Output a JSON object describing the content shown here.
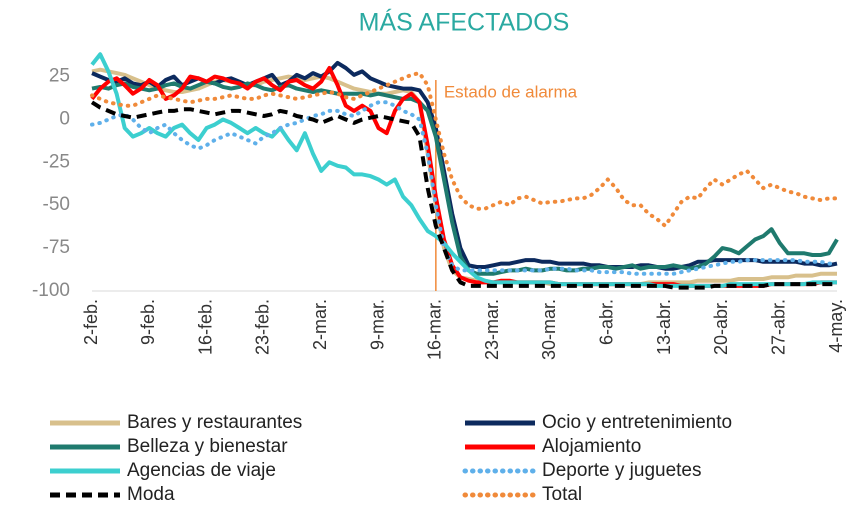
{
  "chart_data": {
    "type": "line",
    "title": "MÁS AFECTADOS",
    "title_color": "#2aa9a1",
    "categories": [
      "2-feb.",
      null,
      null,
      null,
      null,
      null,
      null,
      "9-feb.",
      null,
      null,
      null,
      null,
      null,
      null,
      "16-feb.",
      null,
      null,
      null,
      null,
      null,
      null,
      "23-feb.",
      null,
      null,
      null,
      null,
      null,
      null,
      "2-mar.",
      null,
      null,
      null,
      null,
      null,
      null,
      "9-mar.",
      null,
      null,
      null,
      null,
      null,
      null,
      "16-mar.",
      null,
      null,
      null,
      null,
      null,
      null,
      "23-mar.",
      null,
      null,
      null,
      null,
      null,
      null,
      "30-mar.",
      null,
      null,
      null,
      null,
      null,
      null,
      "6-abr.",
      null,
      null,
      null,
      null,
      null,
      null,
      "13-abr.",
      null,
      null,
      null,
      null,
      null,
      null,
      "20-abr.",
      null,
      null,
      null,
      null,
      null,
      null,
      "27-abr.",
      null,
      null,
      null,
      null,
      null,
      null,
      "4-may."
    ],
    "ylim": [
      -100,
      30
    ],
    "yticks": [
      -100,
      -75,
      -50,
      -25,
      0,
      25
    ],
    "grid": false,
    "annotation": {
      "text": "Estado de alarma",
      "x": "16-mar.",
      "color": "#f08a3a"
    },
    "series": [
      {
        "name": "Bares y restaurantes",
        "color": "#d8c08c",
        "dash": "solid",
        "values": [
          28,
          29,
          28,
          27,
          26,
          24,
          22,
          20,
          18,
          17,
          16,
          16,
          17,
          18,
          20,
          22,
          23,
          22,
          21,
          20,
          20,
          22,
          23,
          24,
          25,
          24,
          23,
          24,
          25,
          24,
          22,
          20,
          18,
          17,
          16,
          15,
          15,
          16,
          17,
          16,
          10,
          -20,
          -50,
          -75,
          -88,
          -92,
          -93,
          -94,
          -94,
          -95,
          -95,
          -95,
          -95,
          -95,
          -95,
          -95,
          -96,
          -96,
          -96,
          -96,
          -96,
          -96,
          -96,
          -96,
          -96,
          -96,
          -96,
          -96,
          -95,
          -95,
          -95,
          -95,
          -95,
          -95,
          -94,
          -94,
          -94,
          -94,
          -94,
          -93,
          -93,
          -93,
          -93,
          -92,
          -92,
          -92,
          -91,
          -91,
          -91,
          -90,
          -90,
          -90
        ]
      },
      {
        "name": "Ocio y entretenimiento",
        "color": "#0c2a5e",
        "dash": "solid",
        "values": [
          27,
          25,
          23,
          22,
          24,
          21,
          20,
          22,
          19,
          23,
          25,
          20,
          22,
          24,
          22,
          21,
          23,
          24,
          22,
          20,
          22,
          24,
          26,
          20,
          22,
          26,
          24,
          27,
          25,
          28,
          33,
          30,
          26,
          28,
          24,
          22,
          20,
          19,
          18,
          18,
          17,
          10,
          -5,
          -30,
          -55,
          -75,
          -85,
          -86,
          -86,
          -85,
          -84,
          -84,
          -83,
          -82,
          -82,
          -83,
          -83,
          -84,
          -84,
          -84,
          -84,
          -85,
          -85,
          -86,
          -86,
          -86,
          -86,
          -85,
          -85,
          -86,
          -87,
          -87,
          -86,
          -85,
          -83,
          -83,
          -82,
          -82,
          -82,
          -82,
          -82,
          -82,
          -83,
          -83,
          -83,
          -83,
          -83,
          -84,
          -84,
          -85,
          -85,
          -84
        ]
      },
      {
        "name": "Belleza y bienestar",
        "color": "#1f7a6e",
        "dash": "solid",
        "values": [
          18,
          19,
          18,
          20,
          21,
          19,
          18,
          17,
          18,
          20,
          21,
          19,
          18,
          20,
          22,
          21,
          19,
          18,
          19,
          21,
          20,
          18,
          17,
          19,
          20,
          18,
          17,
          16,
          17,
          16,
          15,
          15,
          15,
          15,
          14,
          15,
          14,
          13,
          12,
          12,
          10,
          5,
          -10,
          -35,
          -60,
          -80,
          -88,
          -90,
          -90,
          -90,
          -89,
          -88,
          -88,
          -87,
          -88,
          -88,
          -87,
          -87,
          -88,
          -88,
          -87,
          -87,
          -86,
          -86,
          -87,
          -86,
          -85,
          -87,
          -86,
          -86,
          -86,
          -85,
          -86,
          -87,
          -86,
          -84,
          -80,
          -75,
          -76,
          -78,
          -74,
          -70,
          -68,
          -64,
          -72,
          -78,
          -78,
          -78,
          -79,
          -79,
          -78,
          -70
        ]
      },
      {
        "name": "Alojamiento",
        "color": "#ff0000",
        "dash": "solid",
        "values": [
          12,
          18,
          22,
          24,
          20,
          15,
          18,
          23,
          20,
          12,
          14,
          18,
          25,
          24,
          22,
          25,
          24,
          22,
          21,
          18,
          22,
          24,
          20,
          17,
          22,
          23,
          20,
          18,
          22,
          30,
          20,
          8,
          5,
          8,
          5,
          -5,
          -8,
          5,
          12,
          15,
          10,
          -15,
          -45,
          -70,
          -85,
          -92,
          -94,
          -95,
          -95,
          -95,
          -94,
          -94,
          -95,
          -95,
          -95,
          -95,
          -95,
          -96,
          -96,
          -96,
          -96,
          -96,
          -96,
          -96,
          -96,
          -96,
          -96,
          -96,
          -96,
          -96,
          -96,
          -96,
          -97,
          -97,
          -97,
          -97,
          -97,
          -97,
          -97,
          -97,
          -97,
          -97,
          -97,
          -96,
          -96,
          -96,
          -96,
          -96,
          -96,
          -95,
          -95,
          -95
        ]
      },
      {
        "name": "Agencias de viaje",
        "color": "#3ccfcf",
        "dash": "solid",
        "values": [
          32,
          38,
          28,
          15,
          -5,
          -10,
          -8,
          -5,
          -8,
          -10,
          -5,
          -3,
          -8,
          -12,
          -5,
          -3,
          0,
          -2,
          -5,
          -8,
          -5,
          -8,
          -10,
          -5,
          -12,
          -18,
          -8,
          -20,
          -30,
          -25,
          -27,
          -28,
          -32,
          -32,
          -33,
          -35,
          -38,
          -35,
          -45,
          -50,
          -58,
          -65,
          -68,
          -72,
          -78,
          -83,
          -88,
          -92,
          -94,
          -95,
          -95,
          -95,
          -95,
          -95,
          -95,
          -95,
          -95,
          -96,
          -96,
          -96,
          -96,
          -96,
          -96,
          -96,
          -96,
          -96,
          -96,
          -96,
          -96,
          -97,
          -97,
          -97,
          -97,
          -97,
          -97,
          -97,
          -97,
          -97,
          -96,
          -96,
          -96,
          -96,
          -96,
          -96,
          -96,
          -96,
          -96,
          -96,
          -95,
          -95,
          -95,
          -95
        ]
      },
      {
        "name": "Deporte y juguetes",
        "color": "#5fb0ea",
        "dash": "dotted",
        "values": [
          -3,
          -2,
          0,
          2,
          3,
          0,
          -5,
          -8,
          -5,
          -3,
          -8,
          -12,
          -15,
          -17,
          -15,
          -12,
          -10,
          -8,
          -10,
          -12,
          -14,
          -10,
          -8,
          -5,
          -3,
          -2,
          0,
          2,
          3,
          5,
          5,
          3,
          2,
          5,
          8,
          10,
          10,
          8,
          5,
          3,
          0,
          -20,
          -50,
          -75,
          -85,
          -88,
          -88,
          -88,
          -88,
          -88,
          -88,
          -88,
          -88,
          -88,
          -88,
          -88,
          -87,
          -87,
          -87,
          -88,
          -88,
          -88,
          -89,
          -89,
          -89,
          -89,
          -90,
          -90,
          -90,
          -90,
          -90,
          -90,
          -89,
          -88,
          -87,
          -86,
          -85,
          -84,
          -83,
          -83,
          -82,
          -82,
          -82,
          -82,
          -82,
          -82,
          -82,
          -83,
          -83,
          -83,
          -84,
          -84
        ]
      },
      {
        "name": "Moda",
        "color": "#000000",
        "dash": "dashed",
        "values": [
          10,
          7,
          5,
          3,
          2,
          1,
          2,
          3,
          4,
          5,
          5,
          6,
          6,
          5,
          4,
          3,
          4,
          5,
          5,
          4,
          3,
          2,
          3,
          5,
          4,
          2,
          1,
          0,
          -2,
          0,
          2,
          0,
          -2,
          0,
          1,
          2,
          1,
          0,
          -1,
          -2,
          -10,
          -40,
          -62,
          -75,
          -88,
          -95,
          -97,
          -97,
          -97,
          -97,
          -97,
          -97,
          -97,
          -97,
          -97,
          -97,
          -97,
          -97,
          -97,
          -97,
          -97,
          -97,
          -97,
          -97,
          -97,
          -97,
          -97,
          -97,
          -97,
          -97,
          -97,
          -98,
          -98,
          -98,
          -98,
          -98,
          -97,
          -97,
          -97,
          -97,
          -97,
          -97,
          -97,
          -96,
          -96,
          -96,
          -96,
          -96,
          -96,
          -96,
          -96,
          -96
        ]
      },
      {
        "name": "Total",
        "color": "#f08a3a",
        "dash": "dotted",
        "values": [
          14,
          12,
          10,
          9,
          8,
          8,
          10,
          12,
          14,
          13,
          12,
          11,
          10,
          11,
          12,
          12,
          13,
          14,
          13,
          12,
          12,
          14,
          15,
          14,
          13,
          12,
          13,
          14,
          15,
          16,
          15,
          13,
          12,
          14,
          16,
          18,
          20,
          22,
          24,
          26,
          27,
          20,
          0,
          -20,
          -35,
          -45,
          -50,
          -52,
          -52,
          -50,
          -48,
          -50,
          -46,
          -45,
          -47,
          -49,
          -48,
          -48,
          -47,
          -46,
          -46,
          -44,
          -40,
          -35,
          -40,
          -47,
          -50,
          -50,
          -55,
          -58,
          -62,
          -55,
          -48,
          -45,
          -46,
          -40,
          -35,
          -38,
          -35,
          -32,
          -30,
          -35,
          -40,
          -38,
          -40,
          -42,
          -43,
          -45,
          -46,
          -47,
          -46,
          -46
        ]
      }
    ]
  }
}
